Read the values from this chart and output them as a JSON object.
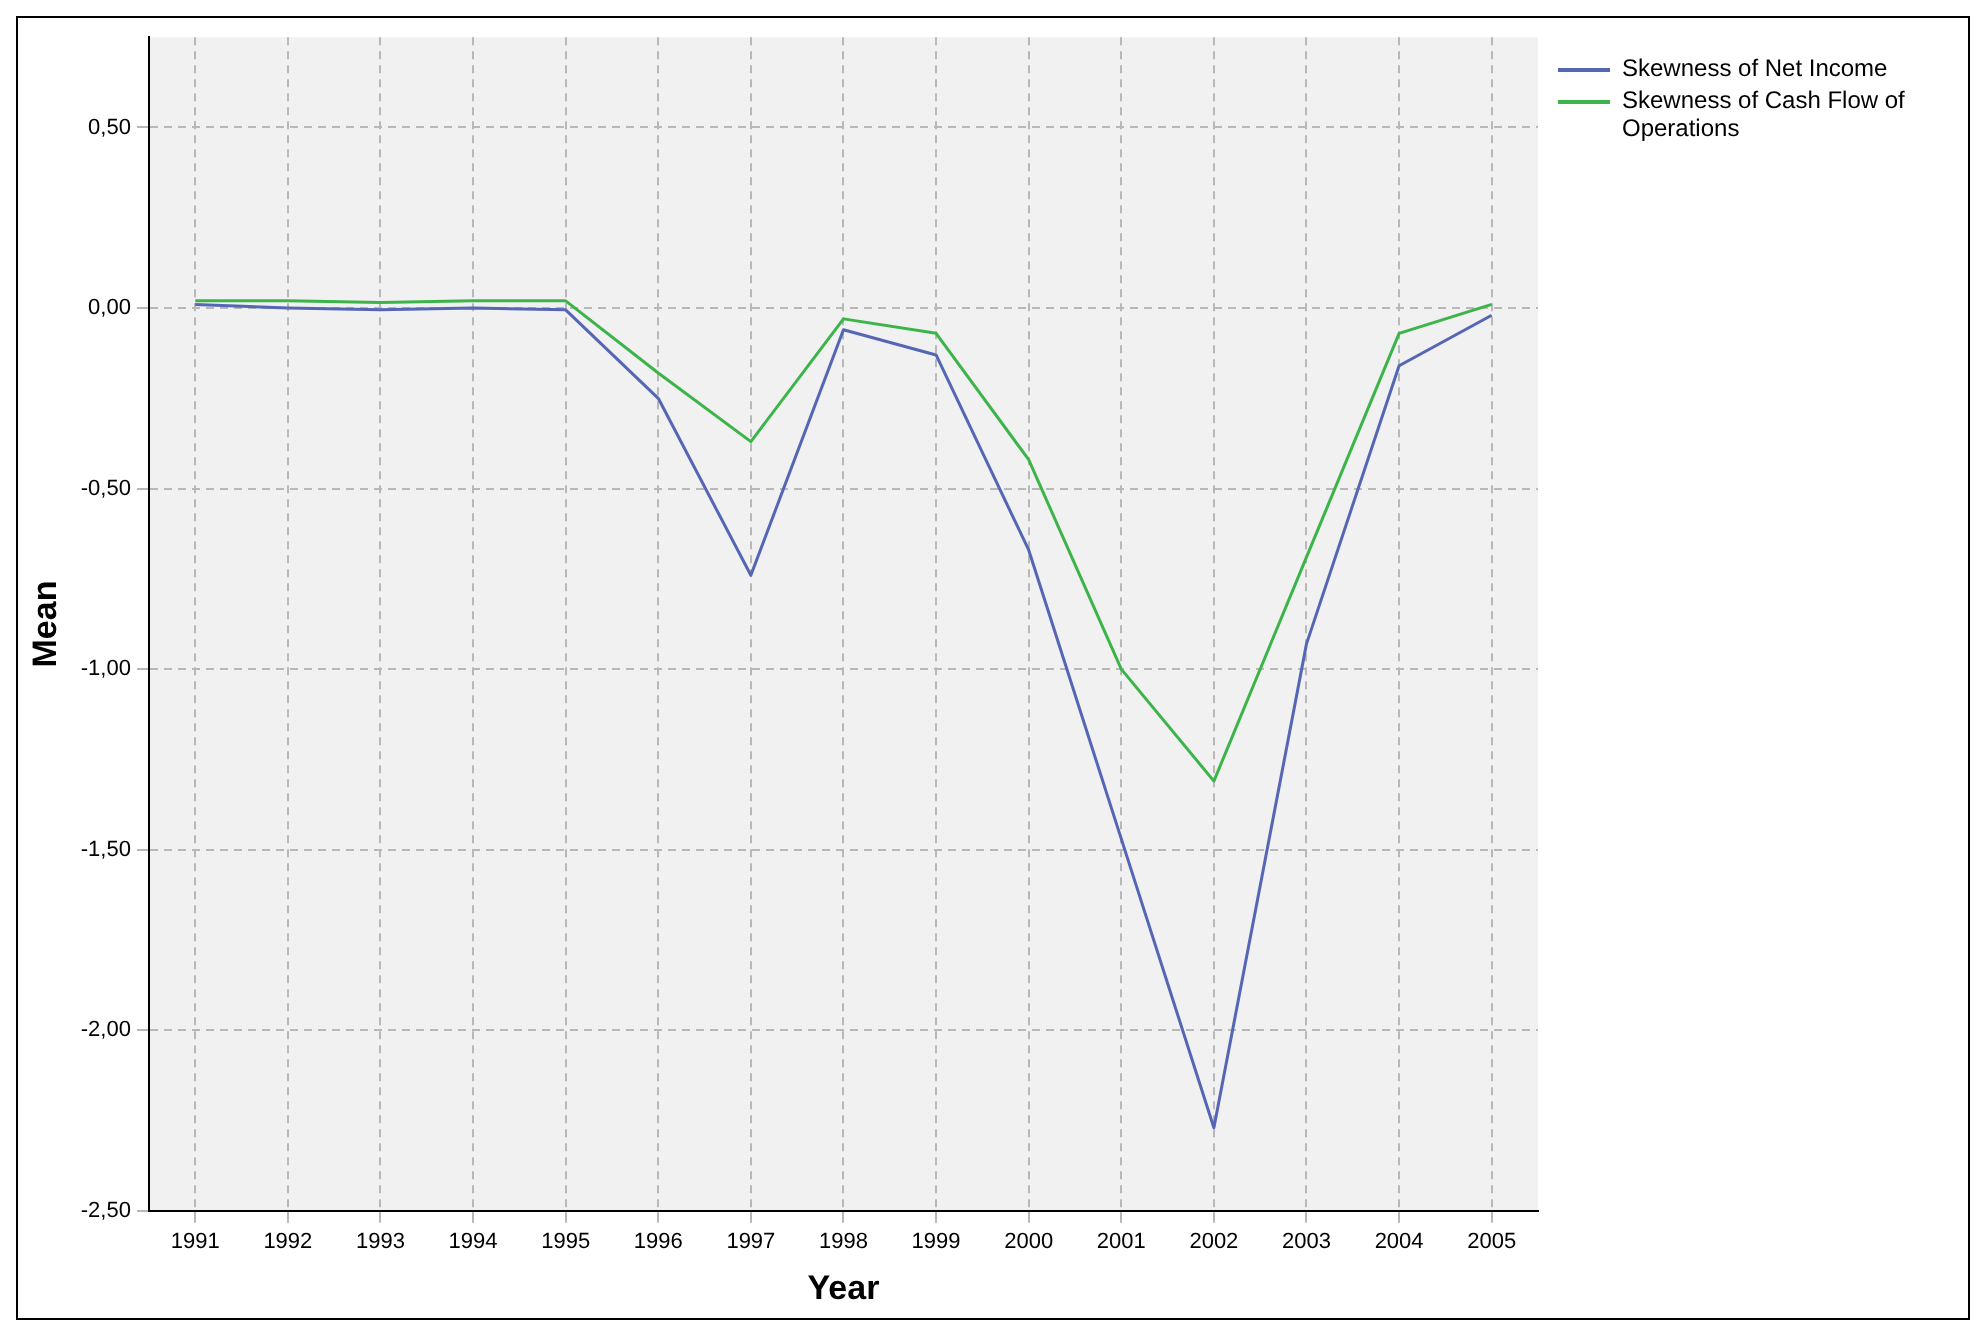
{
  "chart_data": {
    "type": "line",
    "xlabel": "Year",
    "ylabel": "Mean",
    "categories": [
      "1991",
      "1992",
      "1993",
      "1994",
      "1995",
      "1996",
      "1997",
      "1998",
      "1999",
      "2000",
      "2001",
      "2002",
      "2003",
      "2004",
      "2005"
    ],
    "series": [
      {
        "name": "Skewness of Net Income",
        "color": "#5566b5",
        "values": [
          0.01,
          0.0,
          -0.005,
          0.0,
          -0.005,
          -0.25,
          -0.74,
          -0.06,
          -0.13,
          -0.67,
          -1.47,
          -2.27,
          -0.93,
          -0.16,
          -0.02
        ]
      },
      {
        "name": "Skewness of Cash Flow of Operations",
        "color": "#3cb44a",
        "values": [
          0.02,
          0.02,
          0.015,
          0.02,
          0.02,
          -0.18,
          -0.37,
          -0.03,
          -0.07,
          -0.42,
          -1.0,
          -1.31,
          -0.69,
          -0.07,
          0.01
        ]
      }
    ],
    "ylim": [
      -2.5,
      0.75
    ],
    "yticks": [
      {
        "value": -2.5,
        "label": "-2,50"
      },
      {
        "value": -2,
        "label": "-2,00"
      },
      {
        "value": -1.5,
        "label": "-1,50"
      },
      {
        "value": -1,
        "label": "-1,00"
      },
      {
        "value": -0.5,
        "label": "-0,50"
      },
      {
        "value": 0,
        "label": "0,00"
      },
      {
        "value": 0.5,
        "label": "0,50"
      }
    ],
    "grid": true,
    "legend": "right",
    "marker": "none",
    "line_style": "solid"
  }
}
